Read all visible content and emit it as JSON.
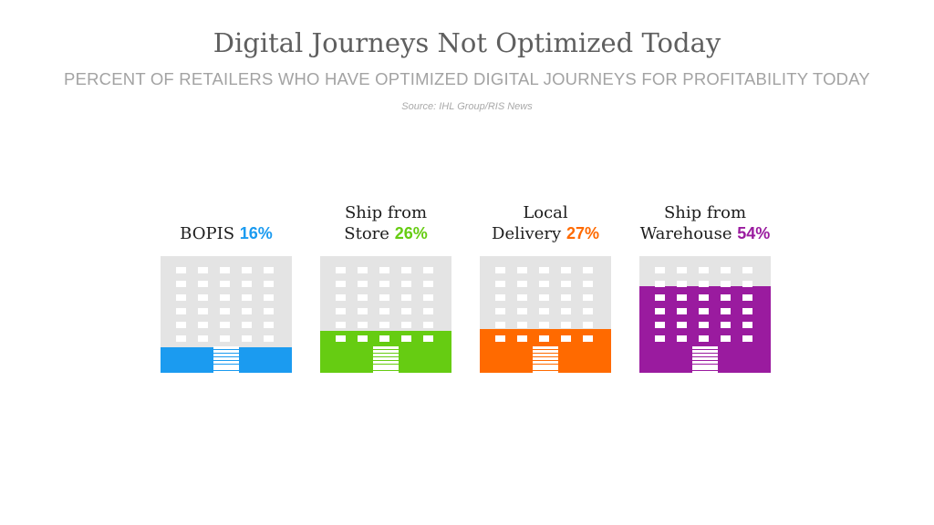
{
  "header": {
    "title": "Digital Journeys Not Optimized Today",
    "subtitle": "PERCENT OF RETAILERS WHO HAVE OPTIMIZED DIGITAL JOURNEYS FOR PROFITABILITY TODAY",
    "source": "Source: IHL Group/RIS News"
  },
  "chart_data": {
    "type": "bar",
    "title": "Digital Journeys Not Optimized Today",
    "subtitle": "PERCENT OF RETAILERS WHO HAVE OPTIMIZED DIGITAL JOURNEYS FOR PROFITABILITY TODAY",
    "categories": [
      {
        "line1": "",
        "line2": "BOPIS",
        "pct": "16%",
        "value": 16,
        "color": "#1b9bf0"
      },
      {
        "line1": "Ship from",
        "line2": "Store",
        "pct": "26%",
        "value": 26,
        "color": "#66cc12"
      },
      {
        "line1": "Local",
        "line2": "Delivery",
        "pct": "27%",
        "value": 27,
        "color": "#ff6a00"
      },
      {
        "line1": "Ship from",
        "line2": "Warehouse",
        "pct": "54%",
        "value": 54,
        "color": "#9a1b9f"
      }
    ],
    "ylim": [
      0,
      100
    ]
  }
}
